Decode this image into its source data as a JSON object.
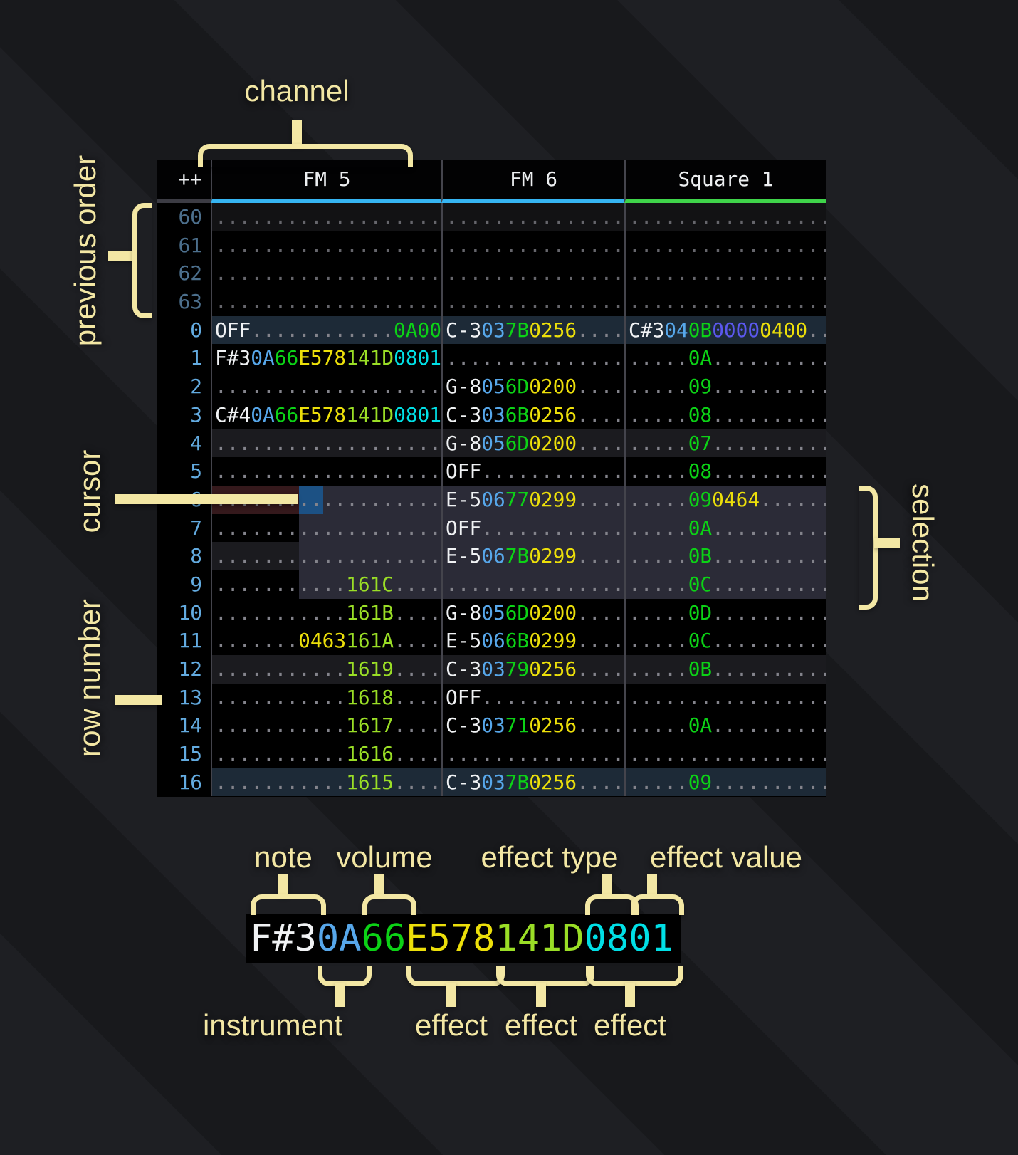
{
  "colors": {
    "note": "#f0f2f4",
    "ins": "#57a7ea",
    "vol": "#0cd216",
    "fx_yellow": "#ecdf0a",
    "fx_lime": "#9ade26",
    "fx_cyan": "#00e0e6",
    "fx_green": "#0cd216",
    "fx_indigo": "#5b58ee",
    "dots": "#84848c",
    "dots_dim": "#66666c",
    "rownum": "#63abe0",
    "rownum_dim": "#4c6f8c",
    "header_text": "#eef0f2",
    "accent_fm": "#36b5f2",
    "accent_sq": "#3fd44a",
    "row_major": "#1d2a37",
    "row_beat": "#1b1b1f",
    "row_prev_beat": "#121214",
    "cursor_row": "#35191c",
    "cursor_cell": "#1c5184",
    "selection": "#2b2b37",
    "annotation": "#f3e7a4",
    "triangle": "#2083f5",
    "grid_line": "#44444c"
  },
  "annotations": {
    "channel": "channel",
    "previous_order": "previous order",
    "cursor": "cursor",
    "row_number": "row number",
    "selection": "selection",
    "note": "note",
    "volume": "volume",
    "effect_type": "effect type",
    "effect_value": "effect value",
    "instrument": "instrument",
    "effects": [
      "effect",
      "effect",
      "effect"
    ]
  },
  "tracker": {
    "corner": "++",
    "channels": [
      {
        "label": "FM 5",
        "accent": "#36b5f2"
      },
      {
        "label": "FM 6",
        "accent": "#36b5f2"
      },
      {
        "label": "Square 1",
        "accent": "#3fd44a"
      }
    ],
    "rows": [
      {
        "num": "60",
        "state": "prev-beat",
        "fm5": [
          [
            "...................",
            "dd"
          ]
        ],
        "fm6": [
          [
            "...............",
            "dd"
          ]
        ],
        "sq1": [
          [
            ".................",
            "dd"
          ]
        ]
      },
      {
        "num": "61",
        "state": "prev",
        "fm5": [
          [
            "...................",
            "dd"
          ]
        ],
        "fm6": [
          [
            "...............",
            "dd"
          ]
        ],
        "sq1": [
          [
            ".................",
            "dd"
          ]
        ]
      },
      {
        "num": "62",
        "state": "prev",
        "fm5": [
          [
            "...................",
            "dd"
          ]
        ],
        "fm6": [
          [
            "...............",
            "dd"
          ]
        ],
        "sq1": [
          [
            ".................",
            "dd"
          ]
        ]
      },
      {
        "num": "63",
        "state": "prev",
        "fm5": [
          [
            "...................",
            "dd"
          ]
        ],
        "fm6": [
          [
            "...............",
            "dd"
          ]
        ],
        "sq1": [
          [
            ".................",
            "dd"
          ]
        ]
      },
      {
        "num": "0",
        "state": "major",
        "fm5": [
          [
            "OFF",
            "n"
          ],
          [
            "............",
            "d"
          ],
          [
            "0A00",
            "fg"
          ]
        ],
        "fm6": [
          [
            "C-3",
            "n"
          ],
          [
            "03",
            "i"
          ],
          [
            "7B",
            "v"
          ],
          [
            "0256",
            "fy"
          ],
          [
            "....",
            "d"
          ]
        ],
        "sq1": [
          [
            "C#3",
            "n"
          ],
          [
            "04",
            "i"
          ],
          [
            "0B",
            "v"
          ],
          [
            "0000",
            "fi"
          ],
          [
            "0400",
            "fy"
          ],
          [
            "..",
            "d"
          ]
        ]
      },
      {
        "num": "1",
        "state": "plain",
        "fm5": [
          [
            "F#3",
            "n"
          ],
          [
            "0A",
            "i"
          ],
          [
            "66",
            "v"
          ],
          [
            "E578",
            "fy"
          ],
          [
            "141D",
            "fl"
          ],
          [
            "0801",
            "fc"
          ]
        ],
        "fm6": [
          [
            "...............",
            "d"
          ]
        ],
        "sq1": [
          [
            ".....",
            "d"
          ],
          [
            "0A",
            "v"
          ],
          [
            "..........",
            "d"
          ]
        ]
      },
      {
        "num": "2",
        "state": "plain",
        "fm5": [
          [
            "...................",
            "d"
          ]
        ],
        "fm6": [
          [
            "G-8",
            "n"
          ],
          [
            "05",
            "i"
          ],
          [
            "6D",
            "v"
          ],
          [
            "0200",
            "fy"
          ],
          [
            "....",
            "d"
          ]
        ],
        "sq1": [
          [
            ".....",
            "d"
          ],
          [
            "09",
            "v"
          ],
          [
            "..........",
            "d"
          ]
        ]
      },
      {
        "num": "3",
        "state": "plain",
        "fm5": [
          [
            "C#4",
            "n"
          ],
          [
            "0A",
            "i"
          ],
          [
            "66",
            "v"
          ],
          [
            "E578",
            "fy"
          ],
          [
            "141D",
            "fl"
          ],
          [
            "0801",
            "fc"
          ]
        ],
        "fm6": [
          [
            "C-3",
            "n"
          ],
          [
            "03",
            "i"
          ],
          [
            "6B",
            "v"
          ],
          [
            "0256",
            "fy"
          ],
          [
            "....",
            "d"
          ]
        ],
        "sq1": [
          [
            ".....",
            "d"
          ],
          [
            "08",
            "v"
          ],
          [
            "..........",
            "d"
          ]
        ]
      },
      {
        "num": "4",
        "state": "beat",
        "fm5": [
          [
            "...................",
            "d"
          ]
        ],
        "fm6": [
          [
            "G-8",
            "n"
          ],
          [
            "05",
            "i"
          ],
          [
            "6D",
            "v"
          ],
          [
            "0200",
            "fy"
          ],
          [
            "....",
            "d"
          ]
        ],
        "sq1": [
          [
            ".....",
            "d"
          ],
          [
            "07",
            "v"
          ],
          [
            "..........",
            "d"
          ]
        ]
      },
      {
        "num": "5",
        "state": "plain",
        "fm5": [
          [
            "...................",
            "d"
          ]
        ],
        "fm6": [
          [
            "OFF",
            "n"
          ],
          [
            "............",
            "d"
          ]
        ],
        "sq1": [
          [
            ".....",
            "d"
          ],
          [
            "08",
            "v"
          ],
          [
            "..........",
            "d"
          ]
        ]
      },
      {
        "num": "6",
        "state": "cursor",
        "fm5": [
          [
            "...................",
            "d"
          ]
        ],
        "fm6": [
          [
            "E-5",
            "n"
          ],
          [
            "06",
            "i"
          ],
          [
            "77",
            "v"
          ],
          [
            "0299",
            "fy"
          ],
          [
            "....",
            "d"
          ]
        ],
        "sq1": [
          [
            ".....",
            "d"
          ],
          [
            "09",
            "v"
          ],
          [
            "0464",
            "fy"
          ],
          [
            "......",
            "d"
          ]
        ]
      },
      {
        "num": "7",
        "state": "sel",
        "fm5": [
          [
            "...................",
            "d"
          ]
        ],
        "fm6": [
          [
            "OFF",
            "n"
          ],
          [
            "............",
            "d"
          ]
        ],
        "sq1": [
          [
            ".....",
            "d"
          ],
          [
            "0A",
            "v"
          ],
          [
            "..........",
            "d"
          ]
        ]
      },
      {
        "num": "8",
        "state": "sel-beat",
        "fm5": [
          [
            "...................",
            "d"
          ]
        ],
        "fm6": [
          [
            "E-5",
            "n"
          ],
          [
            "06",
            "i"
          ],
          [
            "7B",
            "v"
          ],
          [
            "0299",
            "fy"
          ],
          [
            "....",
            "d"
          ]
        ],
        "sq1": [
          [
            ".....",
            "d"
          ],
          [
            "0B",
            "v"
          ],
          [
            "..........",
            "d"
          ]
        ]
      },
      {
        "num": "9",
        "state": "sel",
        "fm5": [
          [
            "...........",
            "d"
          ],
          [
            "161C",
            "fl"
          ],
          [
            "....",
            "d"
          ]
        ],
        "fm6": [
          [
            "...............",
            "d"
          ]
        ],
        "sq1": [
          [
            ".....",
            "d"
          ],
          [
            "0C",
            "v"
          ],
          [
            "..........",
            "d"
          ]
        ]
      },
      {
        "num": "10",
        "state": "plain",
        "fm5": [
          [
            "...........",
            "d"
          ],
          [
            "161B",
            "fl"
          ],
          [
            "....",
            "d"
          ]
        ],
        "fm6": [
          [
            "G-8",
            "n"
          ],
          [
            "05",
            "i"
          ],
          [
            "6D",
            "v"
          ],
          [
            "0200",
            "fy"
          ],
          [
            "....",
            "d"
          ]
        ],
        "sq1": [
          [
            ".....",
            "d"
          ],
          [
            "0D",
            "v"
          ],
          [
            "..........",
            "d"
          ]
        ]
      },
      {
        "num": "11",
        "state": "plain",
        "fm5": [
          [
            ".......",
            "d"
          ],
          [
            "0463",
            "fy"
          ],
          [
            "161A",
            "fl"
          ],
          [
            "....",
            "d"
          ]
        ],
        "fm6": [
          [
            "E-5",
            "n"
          ],
          [
            "06",
            "i"
          ],
          [
            "6B",
            "v"
          ],
          [
            "0299",
            "fy"
          ],
          [
            "....",
            "d"
          ]
        ],
        "sq1": [
          [
            ".....",
            "d"
          ],
          [
            "0C",
            "v"
          ],
          [
            "..........",
            "d"
          ]
        ]
      },
      {
        "num": "12",
        "state": "beat",
        "fm5": [
          [
            "...........",
            "d"
          ],
          [
            "1619",
            "fl"
          ],
          [
            "....",
            "d"
          ]
        ],
        "fm6": [
          [
            "C-3",
            "n"
          ],
          [
            "03",
            "i"
          ],
          [
            "79",
            "v"
          ],
          [
            "0256",
            "fy"
          ],
          [
            "....",
            "d"
          ]
        ],
        "sq1": [
          [
            ".....",
            "d"
          ],
          [
            "0B",
            "v"
          ],
          [
            "..........",
            "d"
          ]
        ]
      },
      {
        "num": "13",
        "state": "plain",
        "fm5": [
          [
            "...........",
            "d"
          ],
          [
            "1618",
            "fl"
          ],
          [
            "....",
            "d"
          ]
        ],
        "fm6": [
          [
            "OFF",
            "n"
          ],
          [
            "............",
            "d"
          ]
        ],
        "sq1": [
          [
            ".................",
            "d"
          ]
        ]
      },
      {
        "num": "14",
        "state": "plain",
        "fm5": [
          [
            "...........",
            "d"
          ],
          [
            "1617",
            "fl"
          ],
          [
            "....",
            "d"
          ]
        ],
        "fm6": [
          [
            "C-3",
            "n"
          ],
          [
            "03",
            "i"
          ],
          [
            "71",
            "v"
          ],
          [
            "0256",
            "fy"
          ],
          [
            "....",
            "d"
          ]
        ],
        "sq1": [
          [
            ".....",
            "d"
          ],
          [
            "0A",
            "v"
          ],
          [
            "..........",
            "d"
          ]
        ]
      },
      {
        "num": "15",
        "state": "plain",
        "fm5": [
          [
            "...........",
            "d"
          ],
          [
            "1616",
            "fl"
          ],
          [
            "....",
            "d"
          ]
        ],
        "fm6": [
          [
            "...............",
            "d"
          ]
        ],
        "sq1": [
          [
            ".................",
            "d"
          ]
        ]
      },
      {
        "num": "16",
        "state": "major",
        "fm5": [
          [
            "...........",
            "d"
          ],
          [
            "1615",
            "fl"
          ],
          [
            "....",
            "d"
          ]
        ],
        "fm6": [
          [
            "C-3",
            "n"
          ],
          [
            "03",
            "i"
          ],
          [
            "7B",
            "v"
          ],
          [
            "0256",
            "fy"
          ],
          [
            "....",
            "d"
          ]
        ],
        "sq1": [
          [
            ".....",
            "d"
          ],
          [
            "09",
            "v"
          ],
          [
            "..........",
            "d"
          ]
        ]
      }
    ]
  },
  "example": {
    "segments": [
      [
        "F#3",
        "n"
      ],
      [
        "0A",
        "i"
      ],
      [
        "66",
        "v"
      ],
      [
        "E578",
        "fy"
      ],
      [
        "141D",
        "fl"
      ],
      [
        "0801",
        "fc"
      ]
    ]
  }
}
